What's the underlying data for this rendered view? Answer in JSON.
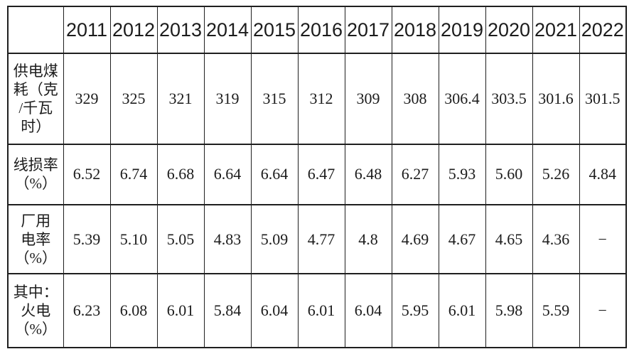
{
  "chart_data": {
    "type": "table",
    "title": "",
    "categories": [
      "2011",
      "2012",
      "2013",
      "2014",
      "2015",
      "2016",
      "2017",
      "2018",
      "2019",
      "2020",
      "2021",
      "2022"
    ],
    "series": [
      {
        "name": "供电煤耗（克/千瓦时）",
        "values": [
          329,
          325,
          321,
          319,
          315,
          312,
          309,
          308,
          306.4,
          303.5,
          301.6,
          301.5
        ]
      },
      {
        "name": "线损率（%）",
        "values": [
          6.52,
          6.74,
          6.68,
          6.64,
          6.64,
          6.47,
          6.48,
          6.27,
          5.93,
          5.6,
          5.26,
          4.84
        ]
      },
      {
        "name": "厂用电率（%）",
        "values": [
          5.39,
          5.1,
          5.05,
          4.83,
          5.09,
          4.77,
          4.8,
          4.69,
          4.67,
          4.65,
          4.36,
          null
        ]
      },
      {
        "name": "其中：火电（%）",
        "values": [
          6.23,
          6.08,
          6.01,
          5.84,
          6.04,
          6.01,
          6.04,
          5.95,
          6.01,
          5.98,
          5.59,
          null
        ]
      }
    ],
    "missing_value_symbol": "−",
    "layout": {
      "grid": true,
      "header_row": "years",
      "legend_position": "none"
    }
  },
  "table": {
    "corner_label": "",
    "columns": [
      "2011",
      "2012",
      "2013",
      "2014",
      "2015",
      "2016",
      "2017",
      "2018",
      "2019",
      "2020",
      "2021",
      "2022"
    ],
    "rows": [
      {
        "label": "供电煤\n耗（克\n/千瓦\n时）",
        "values": [
          "329",
          "325",
          "321",
          "319",
          "315",
          "312",
          "309",
          "308",
          "306.4",
          "303.5",
          "301.6",
          "301.5"
        ]
      },
      {
        "label": "线损率\n（%）",
        "values": [
          "6.52",
          "6.74",
          "6.68",
          "6.64",
          "6.64",
          "6.47",
          "6.48",
          "6.27",
          "5.93",
          "5.60",
          "5.26",
          "4.84"
        ]
      },
      {
        "label": "厂用\n电率\n（%）",
        "values": [
          "5.39",
          "5.10",
          "5.05",
          "4.83",
          "5.09",
          "4.77",
          "4.8",
          "4.69",
          "4.67",
          "4.65",
          "4.36",
          "−"
        ]
      },
      {
        "label": "其中：\n火电\n（%）",
        "values": [
          "6.23",
          "6.08",
          "6.01",
          "5.84",
          "6.04",
          "6.01",
          "6.04",
          "5.95",
          "6.01",
          "5.98",
          "5.59",
          "−"
        ]
      }
    ]
  },
  "colors": {
    "border": "#1f1f1f",
    "text": "#1c1c1c",
    "background": "#ffffff"
  }
}
